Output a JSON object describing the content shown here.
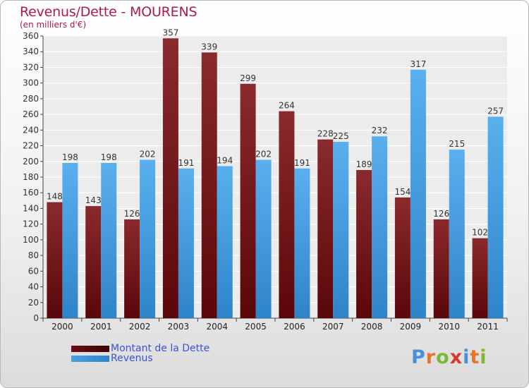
{
  "header": {
    "title": "Revenus/Dette - MOURENS",
    "subtitle": "(en milliers d'€)"
  },
  "legend": {
    "items": [
      {
        "label": "Montant de la Dette",
        "color": "#6b0f12"
      },
      {
        "label": "Revenus",
        "color": "#4a9fe0"
      }
    ]
  },
  "logo": {
    "letters": [
      "P",
      "r",
      "o",
      "x",
      "i",
      "t",
      "i"
    ],
    "colors": [
      "#4a90d9",
      "#e8742a",
      "#7cb83a",
      "#d83a2a",
      "#4a90d9",
      "#e8742a",
      "#7cb83a"
    ]
  },
  "chart_data": {
    "type": "bar",
    "categories": [
      "2000",
      "2001",
      "2002",
      "2003",
      "2004",
      "2005",
      "2006",
      "2007",
      "2008",
      "2009",
      "2010",
      "2011"
    ],
    "series": [
      {
        "name": "Montant de la Dette",
        "color": "#7a1c1f",
        "values": [
          148,
          143,
          126,
          357,
          339,
          299,
          264,
          228,
          189,
          154,
          126,
          102
        ]
      },
      {
        "name": "Revenus",
        "color": "#4aa3e6",
        "values": [
          198,
          198,
          202,
          191,
          194,
          202,
          191,
          225,
          232,
          317,
          215,
          257
        ]
      }
    ],
    "title": "Revenus/Dette - MOURENS",
    "ylabel": "(en milliers d'€)",
    "ylim": [
      0,
      360
    ],
    "yticks": [
      0,
      20,
      40,
      60,
      80,
      100,
      120,
      140,
      160,
      180,
      200,
      220,
      240,
      260,
      280,
      300,
      320,
      340,
      360
    ],
    "grid": true,
    "legend_position": "bottom-left"
  }
}
